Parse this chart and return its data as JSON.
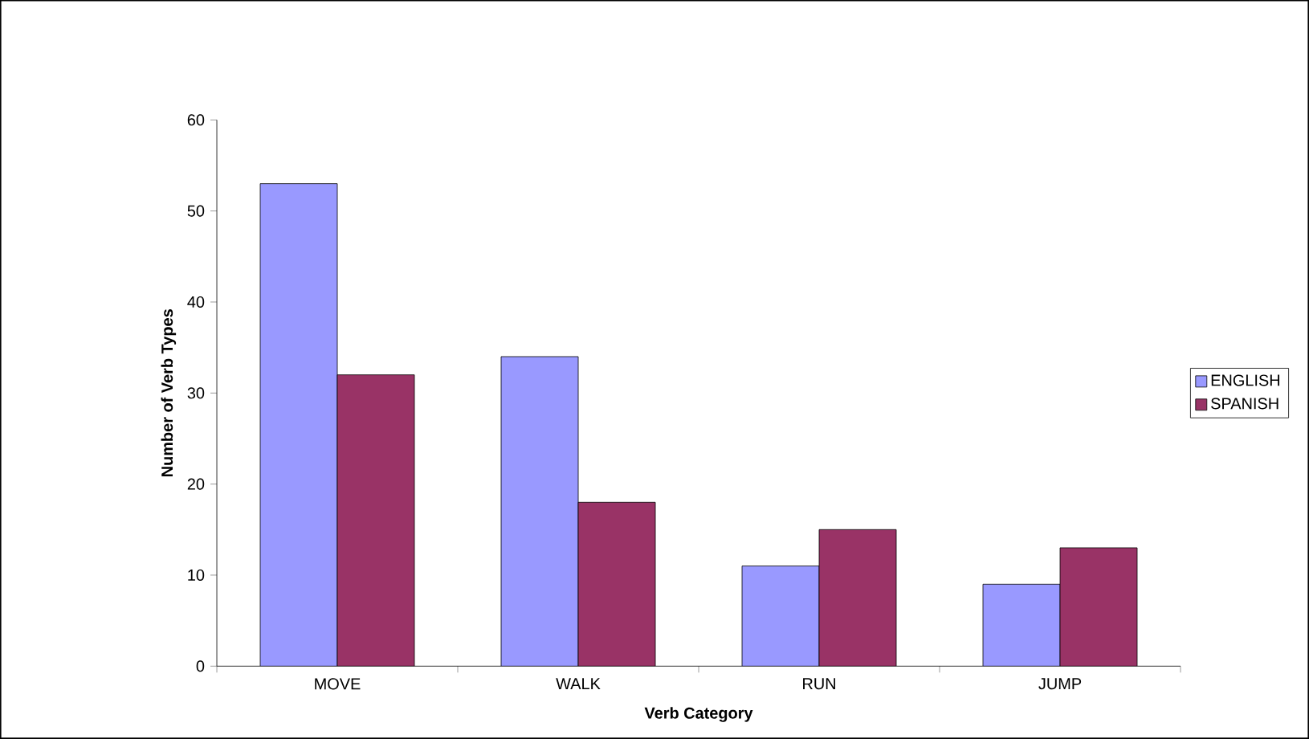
{
  "chart_data": {
    "type": "bar",
    "xlabel": "Verb Category",
    "ylabel": "Number of Verb Types",
    "categories": [
      "MOVE",
      "WALK",
      "RUN",
      "JUMP"
    ],
    "series": [
      {
        "name": "ENGLISH",
        "color": "#9999ff",
        "values": [
          53,
          34,
          11,
          9
        ]
      },
      {
        "name": "SPANISH",
        "color": "#993366",
        "values": [
          32,
          18,
          15,
          13
        ]
      }
    ],
    "ylim": [
      0,
      60
    ],
    "yticks": [
      0,
      10,
      20,
      30,
      40,
      50,
      60
    ],
    "legend": "right"
  }
}
